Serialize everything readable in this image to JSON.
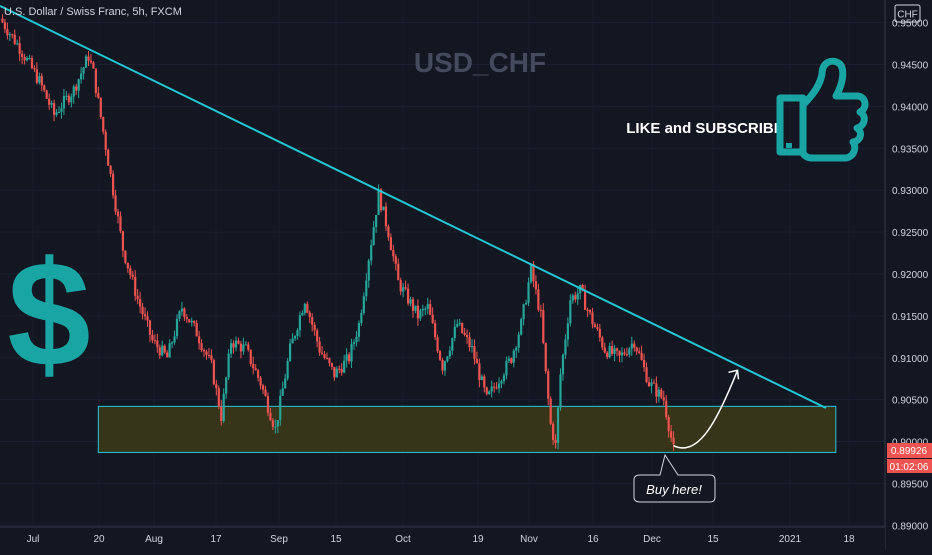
{
  "header": {
    "symbol_desc": "U.S. Dollar / Swiss Franc, 5h, FXCM",
    "currency": "CHF"
  },
  "watermark": "USD_CHF",
  "promo": {
    "text": "LIKE and SUBSCRIBE",
    "icon": "thumbs-up-icon"
  },
  "dollar_icon": "dollar-sign-icon",
  "annotation": {
    "text": "Buy here!"
  },
  "price_labels": {
    "last_price": "0.89926",
    "countdown": "01:02:06"
  },
  "colors": {
    "background": "#131722",
    "up": "#26a69a",
    "down": "#ef5350",
    "trendline": "#22c7d4",
    "zone_border": "#26c6da",
    "zone_fill": "#3d3a18",
    "accent_teal": "#1aa5a5",
    "price_tag": "#ef5350"
  },
  "chart_data": {
    "type": "candlestick",
    "title": "USD_CHF",
    "x_tick_labels": [
      "Jul",
      "20",
      "Aug",
      "17",
      "Sep",
      "15",
      "Oct",
      "19",
      "Nov",
      "16",
      "Dec",
      "15",
      "2021",
      "18"
    ],
    "y_tick_labels": [
      "0.95000",
      "0.94500",
      "0.94000",
      "0.93500",
      "0.93000",
      "0.92500",
      "0.92000",
      "0.91500",
      "0.91000",
      "0.90500",
      "0.90000",
      "0.89500",
      "0.89000"
    ],
    "ylim": [
      0.8898,
      0.9527
    ],
    "path_points": [
      {
        "t": 0,
        "p": 0.9505
      },
      {
        "t": 4,
        "p": 0.947
      },
      {
        "t": 8,
        "p": 0.943
      },
      {
        "t": 11,
        "p": 0.939
      },
      {
        "t": 15,
        "p": 0.942
      },
      {
        "t": 18,
        "p": 0.946
      },
      {
        "t": 19,
        "p": 0.944
      },
      {
        "t": 21,
        "p": 0.937
      },
      {
        "t": 23,
        "p": 0.93
      },
      {
        "t": 25,
        "p": 0.923
      },
      {
        "t": 28,
        "p": 0.917
      },
      {
        "t": 31,
        "p": 0.912
      },
      {
        "t": 34,
        "p": 0.91
      },
      {
        "t": 37,
        "p": 0.916
      },
      {
        "t": 40,
        "p": 0.913
      },
      {
        "t": 43,
        "p": 0.909
      },
      {
        "t": 45,
        "p": 0.903
      },
      {
        "t": 47,
        "p": 0.912
      },
      {
        "t": 50,
        "p": 0.911
      },
      {
        "t": 53,
        "p": 0.907
      },
      {
        "t": 56,
        "p": 0.9015
      },
      {
        "t": 59,
        "p": 0.911
      },
      {
        "t": 62,
        "p": 0.917
      },
      {
        "t": 65,
        "p": 0.911
      },
      {
        "t": 68,
        "p": 0.908
      },
      {
        "t": 71,
        "p": 0.91
      },
      {
        "t": 73,
        "p": 0.914
      },
      {
        "t": 75,
        "p": 0.922
      },
      {
        "t": 77,
        "p": 0.9295
      },
      {
        "t": 79,
        "p": 0.925
      },
      {
        "t": 81,
        "p": 0.919
      },
      {
        "t": 83,
        "p": 0.917
      },
      {
        "t": 85,
        "p": 0.915
      },
      {
        "t": 87,
        "p": 0.916
      },
      {
        "t": 90,
        "p": 0.909
      },
      {
        "t": 93,
        "p": 0.914
      },
      {
        "t": 96,
        "p": 0.911
      },
      {
        "t": 99,
        "p": 0.905
      },
      {
        "t": 101,
        "p": 0.907
      },
      {
        "t": 104,
        "p": 0.91
      },
      {
        "t": 106,
        "p": 0.914
      },
      {
        "t": 108,
        "p": 0.9205
      },
      {
        "t": 110,
        "p": 0.915
      },
      {
        "t": 111,
        "p": 0.908
      },
      {
        "t": 112,
        "p": 0.902
      },
      {
        "t": 113,
        "p": 0.8995
      },
      {
        "t": 114,
        "p": 0.908
      },
      {
        "t": 116,
        "p": 0.917
      },
      {
        "t": 118,
        "p": 0.918
      },
      {
        "t": 120,
        "p": 0.915
      },
      {
        "t": 123,
        "p": 0.911
      },
      {
        "t": 126,
        "p": 0.91
      },
      {
        "t": 129,
        "p": 0.912
      },
      {
        "t": 132,
        "p": 0.907
      },
      {
        "t": 135,
        "p": 0.905
      },
      {
        "t": 137,
        "p": 0.899
      }
    ],
    "trendline": {
      "t1": 0,
      "p1": 0.952,
      "t2": 168,
      "p2": 0.904
    },
    "support_zone": {
      "t1": 20,
      "t2": 170,
      "p_low": 0.8987,
      "p_high": 0.9042
    },
    "forecast_arrow": {
      "t_from": 137,
      "p_from": 0.8995,
      "t_to": 150,
      "p_to": 0.9085
    }
  }
}
